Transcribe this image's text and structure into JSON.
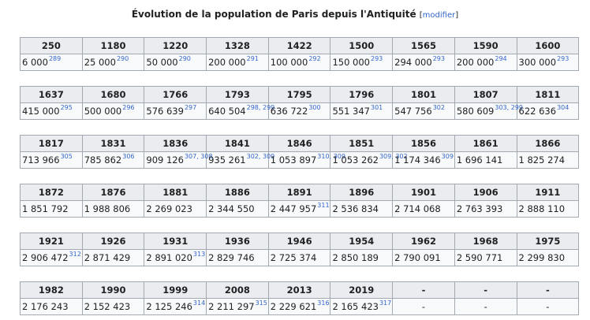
{
  "title": "Évolution de la population de Paris depuis l'Antiquité",
  "edit_open": "[",
  "edit_link": "modifier",
  "edit_close": "]",
  "rows": [
    {
      "years": [
        "250",
        "1180",
        "1220",
        "1328",
        "1422",
        "1500",
        "1565",
        "1590",
        "1600"
      ],
      "values": [
        {
          "v": "6 000",
          "ref": "289"
        },
        {
          "v": "25 000",
          "ref": "290"
        },
        {
          "v": "50 000",
          "ref": "290"
        },
        {
          "v": "200 000",
          "ref": "291"
        },
        {
          "v": "100 000",
          "ref": "292"
        },
        {
          "v": "150 000",
          "ref": "293"
        },
        {
          "v": "294 000",
          "ref": "293"
        },
        {
          "v": "200 000",
          "ref": "294"
        },
        {
          "v": "300 000",
          "ref": "293"
        }
      ]
    },
    {
      "years": [
        "1637",
        "1680",
        "1766",
        "1793",
        "1795",
        "1796",
        "1801",
        "1807",
        "1811"
      ],
      "values": [
        {
          "v": "415 000",
          "ref": "295"
        },
        {
          "v": "500 000",
          "ref": "296"
        },
        {
          "v": "576 639",
          "ref": "297"
        },
        {
          "v": "640 504",
          "ref": "298, 299"
        },
        {
          "v": "636 722",
          "ref": "300"
        },
        {
          "v": "551 347",
          "ref": "301"
        },
        {
          "v": "547 756",
          "ref": "302"
        },
        {
          "v": "580 609",
          "ref": "303, 299"
        },
        {
          "v": "622 636",
          "ref": "304"
        }
      ]
    },
    {
      "years": [
        "1817",
        "1831",
        "1836",
        "1841",
        "1846",
        "1851",
        "1856",
        "1861",
        "1866"
      ],
      "values": [
        {
          "v": "713 966",
          "ref": "305"
        },
        {
          "v": "785 862",
          "ref": "306"
        },
        {
          "v": "909 126",
          "ref": "307, 308"
        },
        {
          "v": "935 261",
          "ref": "302, 309"
        },
        {
          "v": "1 053 897",
          "ref": "310, 309"
        },
        {
          "v": "1 053 262",
          "ref": "309, 302"
        },
        {
          "v": "1 174 346",
          "ref": "309"
        },
        {
          "v": "1 696 141",
          "ref": ""
        },
        {
          "v": "1 825 274",
          "ref": ""
        }
      ]
    },
    {
      "years": [
        "1872",
        "1876",
        "1881",
        "1886",
        "1891",
        "1896",
        "1901",
        "1906",
        "1911"
      ],
      "values": [
        {
          "v": "1 851 792",
          "ref": ""
        },
        {
          "v": "1 988 806",
          "ref": ""
        },
        {
          "v": "2 269 023",
          "ref": ""
        },
        {
          "v": "2 344 550",
          "ref": ""
        },
        {
          "v": "2 447 957",
          "ref": "311"
        },
        {
          "v": "2 536 834",
          "ref": ""
        },
        {
          "v": "2 714 068",
          "ref": ""
        },
        {
          "v": "2 763 393",
          "ref": ""
        },
        {
          "v": "2 888 110",
          "ref": ""
        }
      ]
    },
    {
      "years": [
        "1921",
        "1926",
        "1931",
        "1936",
        "1946",
        "1954",
        "1962",
        "1968",
        "1975"
      ],
      "values": [
        {
          "v": "2 906 472",
          "ref": "312"
        },
        {
          "v": "2 871 429",
          "ref": ""
        },
        {
          "v": "2 891 020",
          "ref": "313"
        },
        {
          "v": "2 829 746",
          "ref": ""
        },
        {
          "v": "2 725 374",
          "ref": ""
        },
        {
          "v": "2 850 189",
          "ref": ""
        },
        {
          "v": "2 790 091",
          "ref": ""
        },
        {
          "v": "2 590 771",
          "ref": ""
        },
        {
          "v": "2 299 830",
          "ref": ""
        }
      ]
    },
    {
      "years": [
        "1982",
        "1990",
        "1999",
        "2008",
        "2013",
        "2019",
        "-",
        "-",
        "-"
      ],
      "values": [
        {
          "v": "2 176 243",
          "ref": ""
        },
        {
          "v": "2 152 423",
          "ref": ""
        },
        {
          "v": "2 125 246",
          "ref": "314"
        },
        {
          "v": "2 211 297",
          "ref": "315"
        },
        {
          "v": "2 229 621",
          "ref": "316"
        },
        {
          "v": "2 165 423",
          "ref": "317"
        },
        {
          "v": "-",
          "ref": ""
        },
        {
          "v": "-",
          "ref": ""
        },
        {
          "v": "-",
          "ref": ""
        }
      ]
    }
  ]
}
